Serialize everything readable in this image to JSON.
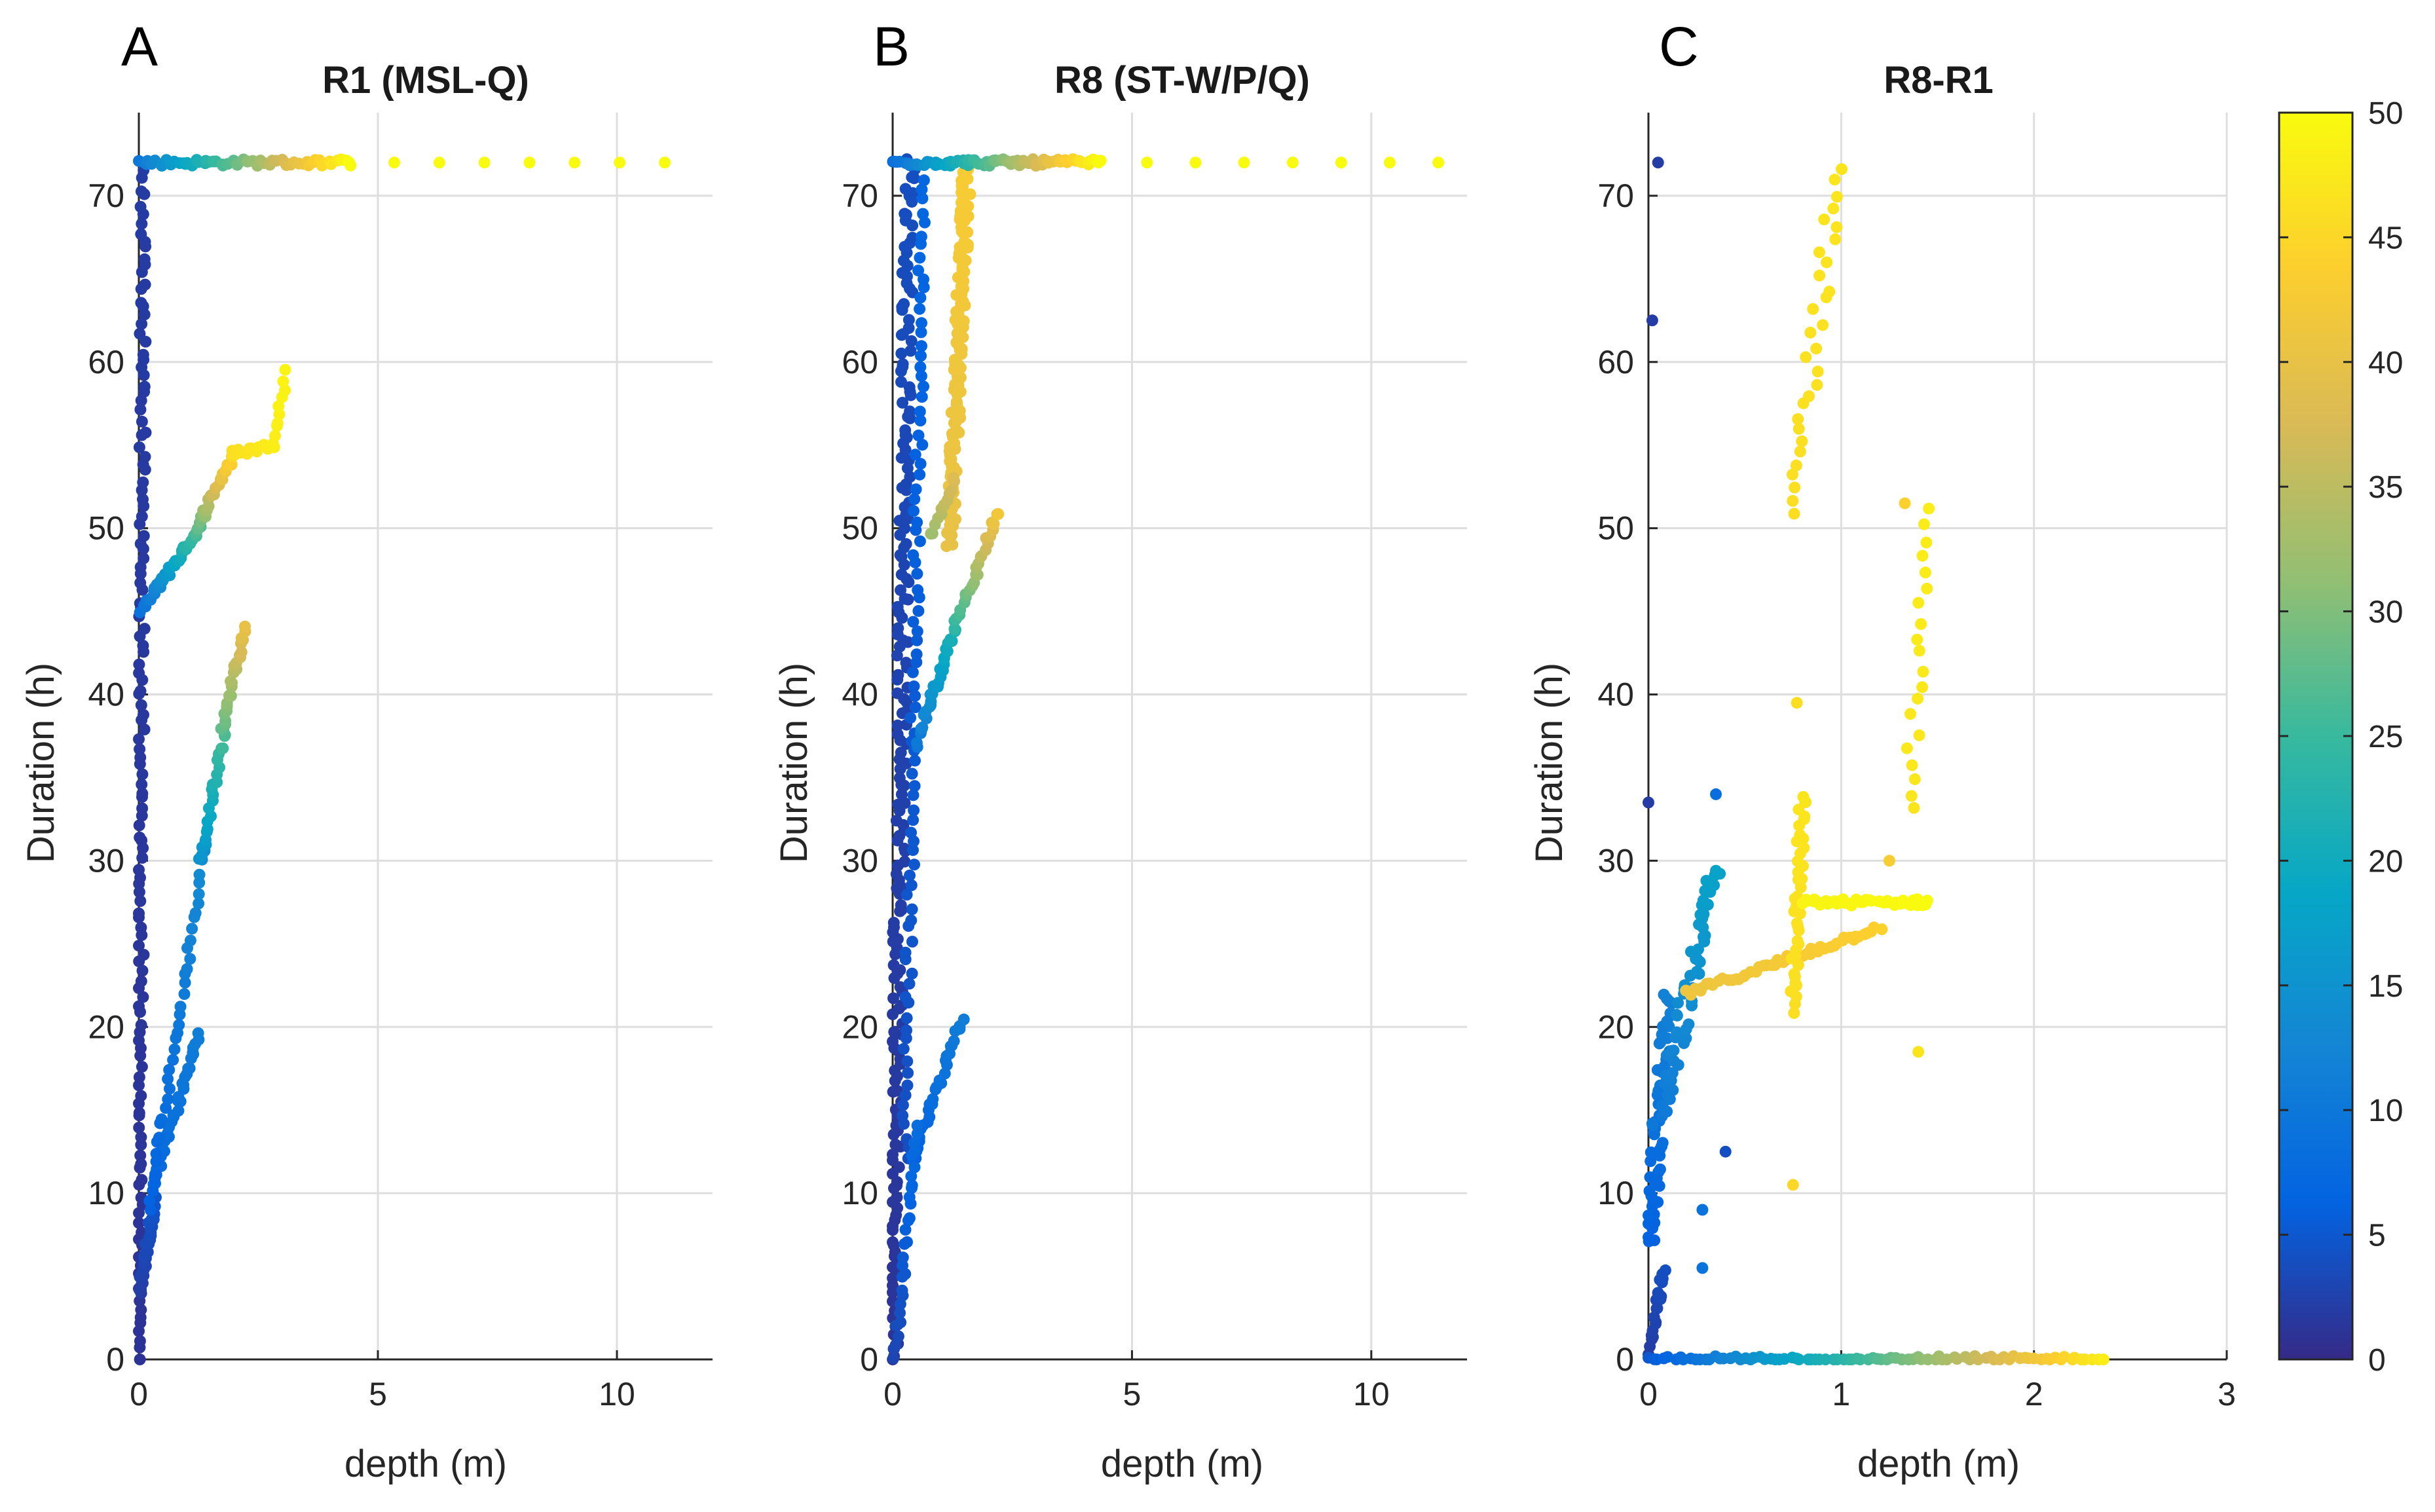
{
  "chart_data": [
    {
      "panel_letter": "A",
      "type": "scatter",
      "title": "R1 (MSL-Q)",
      "xlabel": "depth (m)",
      "ylabel": "Duration (h)",
      "xlim": [
        0,
        12
      ],
      "ylim": [
        0,
        75
      ],
      "xticks": [
        0,
        5,
        10
      ],
      "yticks": [
        0,
        10,
        20,
        30,
        40,
        50,
        60,
        70
      ],
      "grid": true,
      "color_variable_range": [
        0,
        50
      ],
      "segments": [
        {
          "name": "bottom-left flush points",
          "x": [
            0,
            0.1
          ],
          "y": [
            0,
            72
          ],
          "c": [
            1,
            2
          ],
          "n": 140,
          "jitter_x": 0.07
        },
        {
          "name": "lower-left depression",
          "x": [
            0.02,
            0.35
          ],
          "y": [
            4,
            10
          ],
          "c": [
            2,
            5
          ],
          "n": 40
        },
        {
          "name": "track to 20 h",
          "x": [
            0.3,
            1.25
          ],
          "y": [
            10.5,
            19.5
          ],
          "c": [
            7,
            11
          ],
          "n": 36
        },
        {
          "name": "mid track 10-30 h",
          "x": [
            0.2,
            1.4
          ],
          "y": [
            9,
            31
          ],
          "c": [
            6,
            14
          ],
          "n": 40
        },
        {
          "name": "cyan to green segment",
          "x": [
            1.3,
            1.8
          ],
          "y": [
            30,
            38
          ],
          "c": [
            15,
            27
          ],
          "n": 24
        },
        {
          "name": "green to yellow segment",
          "x": [
            1.75,
            2.2
          ],
          "y": [
            38,
            44
          ],
          "c": [
            28,
            40
          ],
          "n": 24
        },
        {
          "name": "blue onset near 46 h",
          "x": [
            0.05,
            0.4
          ],
          "y": [
            45,
            46.5
          ],
          "c": [
            9,
            13
          ],
          "n": 10
        },
        {
          "name": "blue to green rise",
          "x": [
            0.4,
            1.25
          ],
          "y": [
            46.5,
            50
          ],
          "c": [
            13,
            27
          ],
          "n": 30
        },
        {
          "name": "green to yellow rise",
          "x": [
            1.2,
            2.0
          ],
          "y": [
            50,
            54.5
          ],
          "c": [
            28,
            46
          ],
          "n": 26
        },
        {
          "name": "yellow plateau",
          "x": [
            2.0,
            2.8
          ],
          "y": [
            54.5,
            55
          ],
          "c": [
            46,
            48
          ],
          "n": 14
        },
        {
          "name": "yellow tail",
          "x": [
            2.8,
            3.1
          ],
          "y": [
            55,
            59.5
          ],
          "c": [
            48,
            49
          ],
          "n": 10
        },
        {
          "name": "top row",
          "x": [
            0,
            4.4
          ],
          "y": [
            72,
            72
          ],
          "c": [
            10,
            50
          ],
          "n": 60
        },
        {
          "name": "top row far",
          "x": [
            4.4,
            11
          ],
          "y": [
            72,
            72
          ],
          "c": [
            50,
            50
          ],
          "n": 8,
          "even": true
        }
      ]
    },
    {
      "panel_letter": "B",
      "type": "scatter",
      "title": "R8 (ST-W/P/Q)",
      "xlabel": "depth (m)",
      "ylabel": "Duration (h)",
      "xlim": [
        0,
        12
      ],
      "ylim": [
        0,
        75
      ],
      "xticks": [
        0,
        5,
        10
      ],
      "yticks": [
        0,
        10,
        20,
        30,
        40,
        50,
        60,
        70
      ],
      "grid": true,
      "color_variable_range": [
        0,
        50
      ],
      "segments": [
        {
          "name": "bottom flush points",
          "x": [
            0,
            0.35
          ],
          "y": [
            0,
            72
          ],
          "c": [
            1,
            4
          ],
          "n": 200,
          "jitter_x": 0.12
        },
        {
          "name": "near-zero column",
          "x": [
            0.25,
            0.65
          ],
          "y": [
            12,
            71
          ],
          "c": [
            4,
            7
          ],
          "n": 90,
          "jitter_x": 0.08
        },
        {
          "name": "track to 20 h",
          "x": [
            0.4,
            1.45
          ],
          "y": [
            12,
            20.5
          ],
          "c": [
            6,
            11
          ],
          "n": 30
        },
        {
          "name": "lower blue rise",
          "x": [
            0.05,
            0.5
          ],
          "y": [
            0,
            14
          ],
          "c": [
            3,
            8
          ],
          "n": 30
        },
        {
          "name": "cyan rise",
          "x": [
            0.5,
            1.3
          ],
          "y": [
            37,
            44
          ],
          "c": [
            10,
            22
          ],
          "n": 30
        },
        {
          "name": "green to orange rise",
          "x": [
            1.3,
            2.2
          ],
          "y": [
            44,
            51
          ],
          "c": [
            24,
            42
          ],
          "n": 26
        },
        {
          "name": "orange column",
          "x": [
            1.2,
            1.55
          ],
          "y": [
            49,
            72
          ],
          "c": [
            40,
            43
          ],
          "n": 120,
          "jitter_x": 0.1
        },
        {
          "name": "olive scatter",
          "x": [
            0.8,
            1.3
          ],
          "y": [
            49.5,
            53
          ],
          "c": [
            32,
            38
          ],
          "n": 12
        },
        {
          "name": "top row",
          "x": [
            0,
            4.3
          ],
          "y": [
            72,
            72
          ],
          "c": [
            8,
            50
          ],
          "n": 70
        },
        {
          "name": "top row far",
          "x": [
            4.3,
            11.4
          ],
          "y": [
            72,
            72
          ],
          "c": [
            50,
            50
          ],
          "n": 8,
          "even": true
        }
      ]
    },
    {
      "panel_letter": "C",
      "type": "scatter",
      "title": "R8-R1",
      "xlabel": "depth (m)",
      "ylabel": "Duration (h)",
      "xlim": [
        0,
        3
      ],
      "ylim": [
        0,
        75
      ],
      "xticks": [
        0,
        1,
        2,
        3
      ],
      "yticks": [
        0,
        10,
        20,
        30,
        40,
        50,
        60,
        70
      ],
      "grid": true,
      "color_variable_range": [
        0,
        50
      ],
      "segments": [
        {
          "name": "small near-zero cluster",
          "x": [
            0.01,
            0.08
          ],
          "y": [
            0.5,
            5.5
          ],
          "c": [
            2,
            4
          ],
          "n": 20
        },
        {
          "name": "blue column",
          "x": [
            0.01,
            0.1
          ],
          "y": [
            7,
            22
          ],
          "c": [
            6,
            12
          ],
          "n": 60,
          "jitter_x": 0.03
        },
        {
          "name": "blue to cyan rise",
          "x": [
            0.05,
            0.35
          ],
          "y": [
            14,
            29.5
          ],
          "c": [
            10,
            18
          ],
          "n": 60,
          "jitter_x": 0.04
        },
        {
          "name": "orange track",
          "x": [
            0.2,
            1.2
          ],
          "y": [
            22,
            26
          ],
          "c": [
            41,
            44
          ],
          "n": 50
        },
        {
          "name": "yellow column at 0.75",
          "x": [
            0.75,
            0.8
          ],
          "y": [
            21,
            34
          ],
          "c": [
            46,
            47
          ],
          "n": 40,
          "jitter_x": 0.02
        },
        {
          "name": "yellow plateau at 27.5",
          "x": [
            0.8,
            1.45
          ],
          "y": [
            27.5,
            27.5
          ],
          "c": [
            49,
            50
          ],
          "n": 40
        },
        {
          "name": "yellow upper column",
          "x": [
            0.75,
            0.98
          ],
          "y": [
            51,
            71.5
          ],
          "c": [
            46,
            47
          ],
          "n": 30,
          "jitter_x": 0.04
        },
        {
          "name": "yellow right column",
          "x": [
            1.35,
            1.45
          ],
          "y": [
            33,
            51
          ],
          "c": [
            47,
            48
          ],
          "n": 20,
          "jitter_x": 0.03
        },
        {
          "name": "bottom row",
          "x": [
            0,
            2.35
          ],
          "y": [
            0,
            0
          ],
          "c": [
            5,
            48
          ],
          "n": 90
        }
      ],
      "points": [
        {
          "x": 0.05,
          "y": 72,
          "c": 2
        },
        {
          "x": 0.02,
          "y": 62.5,
          "c": 2
        },
        {
          "x": 0.0,
          "y": 33.5,
          "c": 2
        },
        {
          "x": 0.35,
          "y": 34,
          "c": 8
        },
        {
          "x": 0.4,
          "y": 12.5,
          "c": 4
        },
        {
          "x": 0.28,
          "y": 9,
          "c": 9
        },
        {
          "x": 0.28,
          "y": 5.5,
          "c": 9
        },
        {
          "x": 0.75,
          "y": 10.5,
          "c": 45
        },
        {
          "x": 0.77,
          "y": 39.5,
          "c": 46
        },
        {
          "x": 1.33,
          "y": 51.5,
          "c": 44
        },
        {
          "x": 1.4,
          "y": 18.5,
          "c": 47
        },
        {
          "x": 1.25,
          "y": 30,
          "c": 43
        }
      ]
    }
  ],
  "colorbar": {
    "min": 0,
    "max": 50,
    "ticks": [
      "0",
      "5",
      "10",
      "15",
      "20",
      "25",
      "30",
      "35",
      "40",
      "45",
      "50"
    ]
  }
}
